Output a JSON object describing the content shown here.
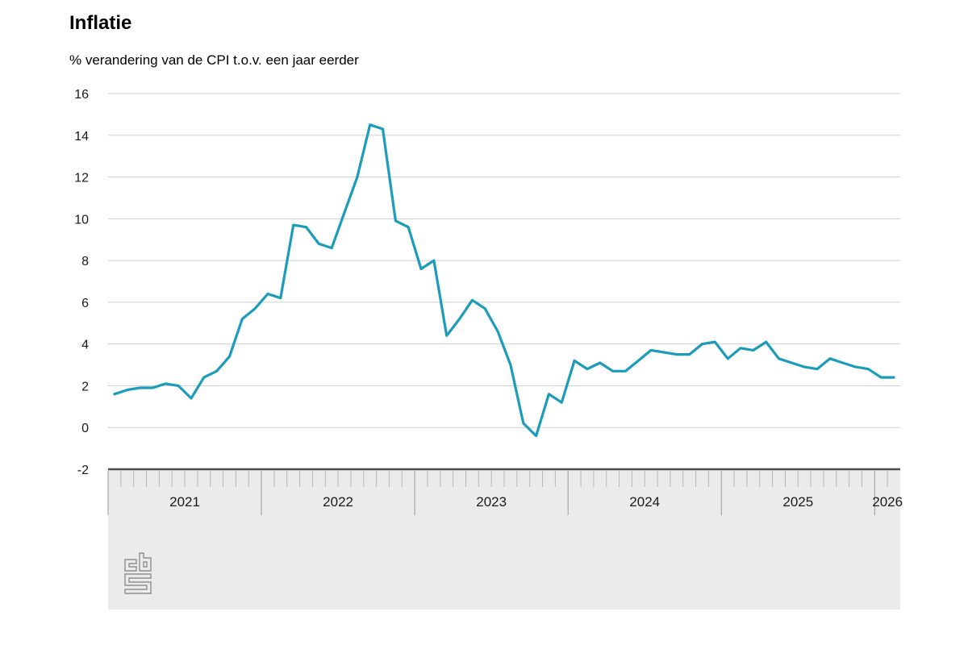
{
  "header": {
    "title": "Inflatie",
    "subtitle": "% verandering van de CPI t.o.v. een jaar eerder"
  },
  "colors": {
    "line": "#1a9cba",
    "gridline": "#cfcfcf",
    "axis_band_bg": "#ebebeb",
    "axis_band_border": "#4d4d4d",
    "month_tick": "#b8b8b8",
    "year_tick": "#9a9a9a",
    "label_text": "#1a1a1a",
    "logo": "#8f8f8f"
  },
  "chart_data": {
    "type": "line",
    "title": "Inflatie",
    "subtitle": "% verandering van de CPI t.o.v. een jaar eerder",
    "unit": "%",
    "x_start": "2021-01",
    "x_end": "2026-02",
    "x_tick_interval": "month",
    "year_labels": [
      "2021",
      "2022",
      "2023",
      "2024",
      "2025",
      "2026"
    ],
    "ylim": [
      -2,
      16
    ],
    "y_ticks": [
      16,
      14,
      12,
      10,
      8,
      6,
      4,
      2,
      0,
      -2
    ],
    "grid": "horizontal",
    "legend_position": "none",
    "series": [
      {
        "name": "Inflatie (CPI, % t.o.v. een jaar eerder)",
        "monthly_values": {
          "2021": [
            1.6,
            1.8,
            1.9,
            1.9,
            2.1,
            2.0,
            1.4,
            2.4,
            2.7,
            3.4,
            5.2,
            5.7
          ],
          "2022": [
            6.4,
            6.2,
            9.7,
            9.6,
            8.8,
            8.6,
            10.3,
            12.0,
            14.5,
            14.3,
            9.9,
            9.6
          ],
          "2023": [
            7.6,
            8.0,
            4.4,
            5.2,
            6.1,
            5.7,
            4.6,
            3.0,
            0.2,
            -0.4,
            1.6,
            1.2
          ],
          "2024": [
            3.2,
            2.8,
            3.1,
            2.7,
            2.7,
            3.2,
            3.7,
            3.6,
            3.5,
            3.5,
            4.0,
            4.1
          ],
          "2025": [
            3.3,
            3.8,
            3.7,
            4.1,
            3.3,
            3.1,
            2.9,
            2.8,
            3.3,
            3.1,
            2.9,
            2.8
          ],
          "2026": [
            2.4,
            2.4
          ]
        }
      }
    ]
  },
  "footer": {
    "logo": "cbs-logo"
  }
}
